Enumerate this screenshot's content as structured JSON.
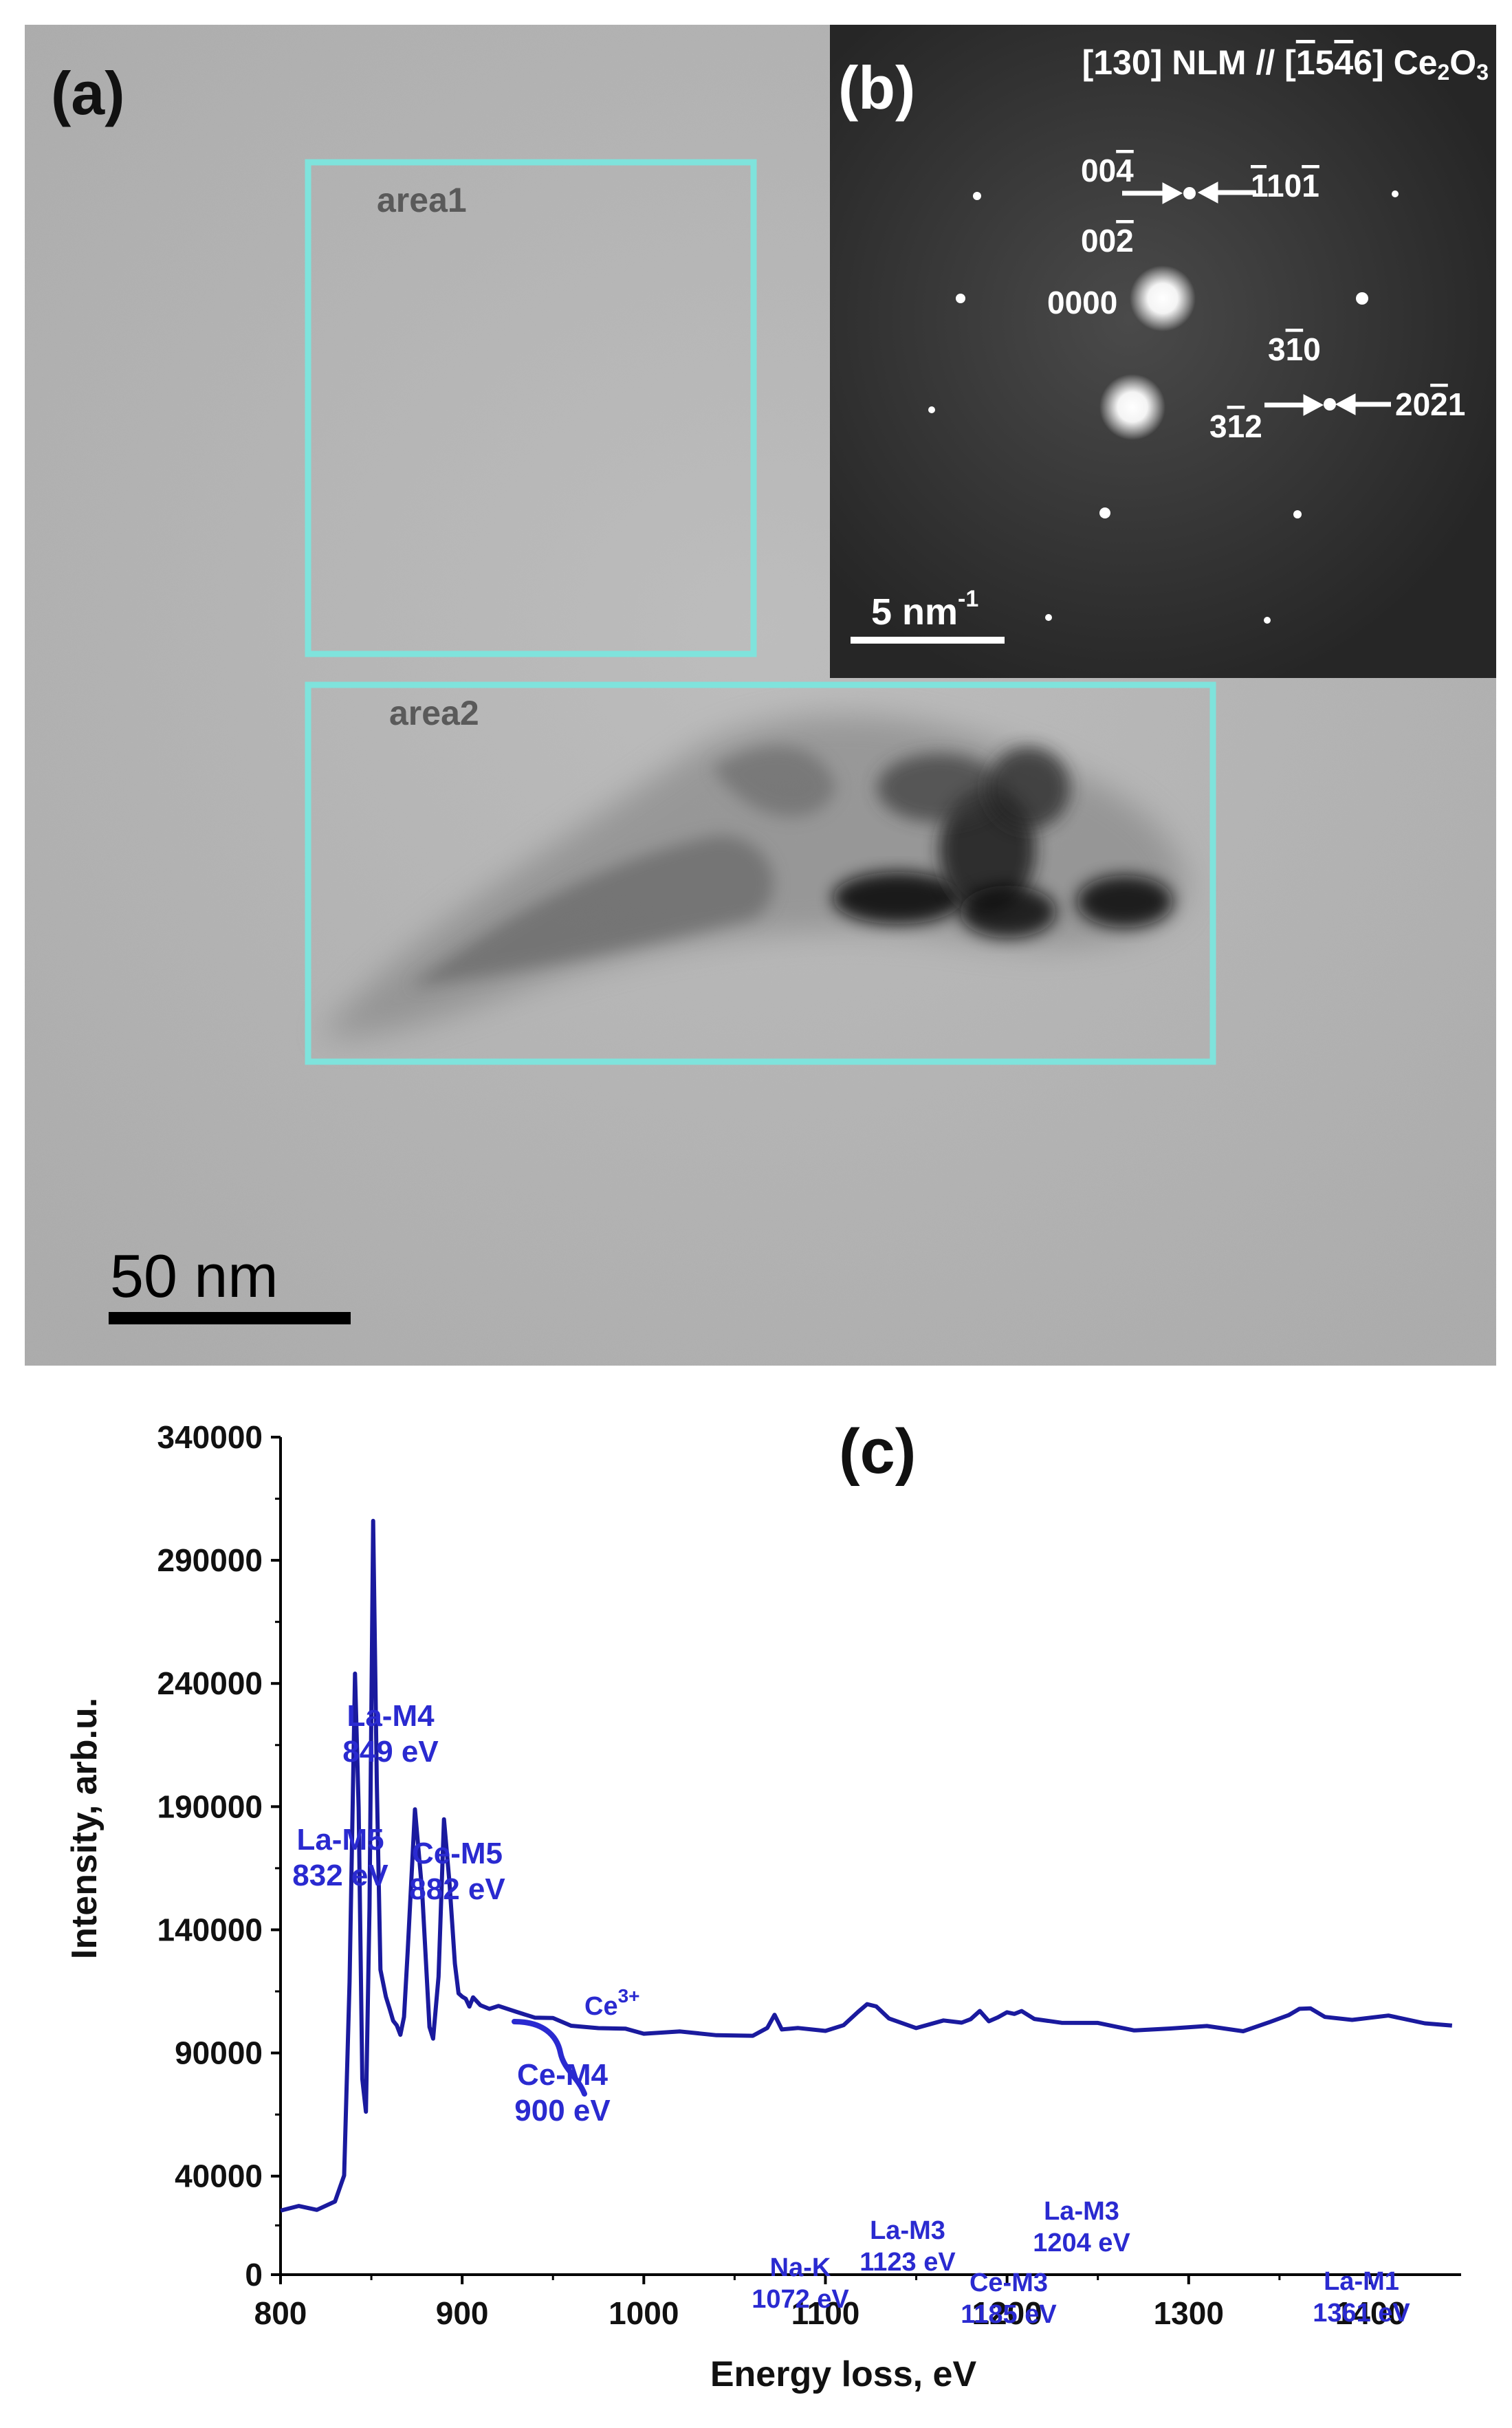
{
  "panel_a": {
    "label": "(a)",
    "regions": [
      {
        "label": "area1"
      },
      {
        "label": "area2"
      }
    ],
    "scale_bar": "50 nm"
  },
  "panel_b": {
    "label": "(b)",
    "title": "[130] NLM // [Ź5Ź4Ź6] Ce₂O₃",
    "title_parts": [
      "[130] NLM // [",
      "1",
      "5",
      "4",
      "6",
      "] Ce",
      "2",
      "O",
      "3"
    ],
    "scale_bar": "5 nm",
    "scale_bar_sup": "-1",
    "reflections": [
      {
        "id": "004",
        "text": "00",
        "bar": "4"
      },
      {
        "id": "1101",
        "text": "110",
        "bar": "1"
      },
      {
        "id": "002",
        "text": "00",
        "bar": "2"
      },
      {
        "id": "0000",
        "text": "0000"
      },
      {
        "id": "310",
        "text": "3",
        "bar": "1",
        "rest": "0"
      },
      {
        "id": "312",
        "text": "3",
        "bar": "1",
        "rest": "2"
      },
      {
        "id": "2021",
        "text": "20",
        "bar": "2",
        "rest": "1"
      }
    ]
  },
  "colors": {
    "region_box": "#7fe3dc",
    "spectrum": "#1a1a9e",
    "annotation": "#2a2ad0",
    "tem_background": "#b4b4b4",
    "saed_background": "#2a2a2a"
  },
  "chart_data": {
    "type": "line",
    "panel_label": "(c)",
    "xlabel": "Energy loss, eV",
    "ylabel": "Intensity, arb.u.",
    "xlim": [
      800,
      1450
    ],
    "ylim": [
      0,
      340000
    ],
    "x_ticks": [
      800,
      900,
      1000,
      1100,
      1200,
      1300,
      1400
    ],
    "y_ticks": [
      0,
      40000,
      90000,
      140000,
      190000,
      240000,
      290000,
      340000
    ],
    "x_tick_labels": [
      "800",
      "900",
      "1000",
      "1100",
      "1200",
      "1300",
      "1400"
    ],
    "y_tick_labels": [
      "0",
      "40000",
      "90000",
      "140000",
      "190000",
      "240000",
      "290000",
      "340000"
    ],
    "series": [
      {
        "x": [
          800,
          810,
          820,
          830,
          835,
          838,
          841,
          843,
          845,
          847,
          849,
          851,
          853,
          855,
          858,
          860,
          862,
          864,
          866,
          868,
          870,
          874,
          878,
          882,
          884,
          887,
          890,
          893,
          896,
          898,
          900,
          902,
          904,
          906,
          910,
          915,
          920,
          930,
          940,
          950,
          960,
          975,
          990,
          1000,
          1020,
          1040,
          1060,
          1068,
          1072,
          1076,
          1085,
          1100,
          1110,
          1118,
          1123,
          1128,
          1135,
          1150,
          1165,
          1175,
          1180,
          1185,
          1190,
          1195,
          1200,
          1204,
          1208,
          1215,
          1230,
          1250,
          1270,
          1290,
          1310,
          1330,
          1345,
          1355,
          1361,
          1367,
          1375,
          1390,
          1410,
          1430,
          1445
        ],
        "y": [
          26000,
          27000,
          27500,
          29000,
          40000,
          120000,
          244000,
          190000,
          80000,
          65000,
          150000,
          306000,
          200000,
          125000,
          112000,
          108000,
          104000,
          100000,
          98000,
          105000,
          130000,
          190000,
          155000,
          100000,
          97000,
          120000,
          185000,
          160000,
          125000,
          115000,
          113000,
          111000,
          110000,
          112000,
          109000,
          109000,
          108000,
          107000,
          105000,
          103000,
          102000,
          100000,
          99000,
          99000,
          98000,
          97000,
          98000,
          99000,
          106000,
          100000,
          99000,
          100000,
          101000,
          106000,
          111000,
          108000,
          104000,
          101000,
          102000,
          103000,
          104000,
          106000,
          104000,
          104000,
          106000,
          107000,
          106000,
          104000,
          103000,
          101000,
          100000,
          100000,
          100000,
          100000,
          102000,
          105000,
          109000,
          107000,
          105000,
          104000,
          104000,
          103000,
          101000
        ]
      }
    ],
    "annotations": [
      {
        "lines": [
          "La-M5",
          "832 eV"
        ]
      },
      {
        "lines": [
          "La-M4",
          "849 eV"
        ]
      },
      {
        "lines": [
          "Ce-M5",
          "882 eV"
        ]
      },
      {
        "lines": [
          "Ce-M4",
          "900 eV"
        ]
      },
      {
        "lines": [
          "Ce",
          "3+"
        ]
      },
      {
        "lines": [
          "Na-K",
          "1072 eV"
        ]
      },
      {
        "lines": [
          "La-M3",
          "1123 eV"
        ]
      },
      {
        "lines": [
          "Ce-M3",
          "1185 eV"
        ]
      },
      {
        "lines": [
          "La-M3",
          "1204 eV"
        ]
      },
      {
        "lines": [
          "La-M1",
          "1361 eV"
        ]
      }
    ]
  }
}
